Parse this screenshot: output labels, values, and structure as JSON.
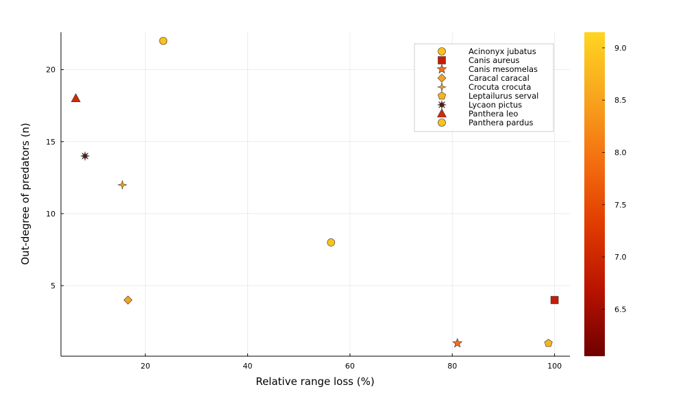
{
  "chart_data": {
    "type": "scatter",
    "title": "",
    "xlabel": "Relative range loss (%)",
    "ylabel": "Out-degree of predators (n)",
    "xlim": [
      3.5,
      103
    ],
    "ylim": [
      0.1,
      22.6
    ],
    "x_ticks": [
      20,
      40,
      60,
      80,
      100
    ],
    "y_ticks": [
      5,
      10,
      15,
      20
    ],
    "grid": true,
    "legend_position": "top-right",
    "colorbar": {
      "min": 6.05,
      "max": 9.15,
      "ticks": [
        "6.5",
        "7.0",
        "7.5",
        "8.0",
        "8.5",
        "9.0"
      ],
      "colormap": "heat (dark red to yellow)"
    },
    "series": [
      {
        "name": "Acinonyx jubatus",
        "marker": "circle",
        "color": "#FCC11C",
        "x": [
          23.5,
          56.3
        ],
        "y": [
          22,
          8
        ]
      },
      {
        "name": "Canis aureus",
        "marker": "square",
        "color": "#C51D07",
        "x": [
          100
        ],
        "y": [
          4
        ]
      },
      {
        "name": "Canis mesomelas",
        "marker": "star",
        "color": "#F46E1E",
        "x": [
          81
        ],
        "y": [
          1
        ]
      },
      {
        "name": "Caracal caracal",
        "marker": "diamond",
        "color": "#F6A321",
        "x": [
          16.6
        ],
        "y": [
          4
        ]
      },
      {
        "name": "Crocuta crocuta",
        "marker": "cross4",
        "color": "#F6A321",
        "x": [
          15.5
        ],
        "y": [
          12
        ]
      },
      {
        "name": "Leptailurus serval",
        "marker": "pentagon",
        "color": "#F8B420",
        "x": [
          98.8
        ],
        "y": [
          1
        ]
      },
      {
        "name": "Lycaon pictus",
        "marker": "asterisk",
        "color": "#6B0E0E",
        "x": [
          8.2
        ],
        "y": [
          14
        ]
      },
      {
        "name": "Panthera leo",
        "marker": "triangle",
        "color": "#D02A09",
        "x": [
          6.4
        ],
        "y": [
          18
        ]
      },
      {
        "name": "Panthera pardus",
        "marker": "circle",
        "color": "#FCC11C",
        "x": [],
        "y": []
      }
    ]
  }
}
